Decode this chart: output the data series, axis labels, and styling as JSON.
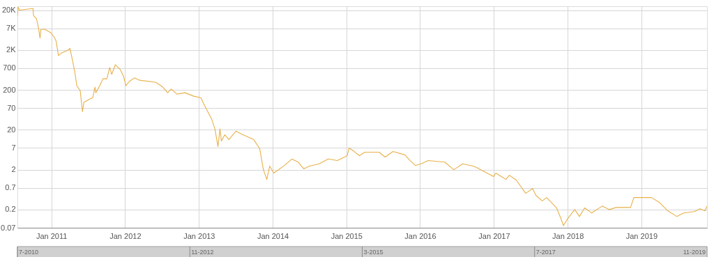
{
  "chart_data": {
    "type": "line",
    "color": "#e8b04a",
    "grid": true,
    "log": "y",
    "xlim": [
      "2010-07-17",
      "2019-11-22"
    ],
    "xticks": [
      {
        "value": "2011-01-01",
        "label": "Jan 2011"
      },
      {
        "value": "2012-01-01",
        "label": "Jan 2012"
      },
      {
        "value": "2013-01-01",
        "label": "Jan 2013"
      },
      {
        "value": "2014-01-01",
        "label": "Jan 2014"
      },
      {
        "value": "2015-01-01",
        "label": "Jan 2015"
      },
      {
        "value": "2016-01-01",
        "label": "Jan 2016"
      },
      {
        "value": "2017-01-01",
        "label": "Jan 2017"
      },
      {
        "value": "2018-01-01",
        "label": "Jan 2018"
      },
      {
        "value": "2019-01-01",
        "label": "Jan 2019"
      }
    ],
    "ylim": [
      0.07,
      25000
    ],
    "yticks": [
      0.07,
      0.2,
      0.7,
      2,
      7,
      20,
      70,
      200,
      700,
      {
        "value": 2000,
        "label": "2K"
      },
      {
        "value": 7000,
        "label": "7K"
      },
      {
        "value": 20000,
        "label": "20K"
      }
    ],
    "annotations": [
      "7-2010",
      "11-2012",
      "3-2015",
      "7-2017",
      "11-2019"
    ],
    "x": [
      "2010-07-17",
      "2010-07-20",
      "2010-07-27",
      "2010-10-02",
      "2010-10-05",
      "2010-10-19",
      "2010-10-29",
      "2010-11-06",
      "2010-11-10",
      "2010-11-27",
      "2010-12-28",
      "2011-01-14",
      "2011-01-25",
      "2011-02-05",
      "2011-02-18",
      "2011-03-26",
      "2011-04-03",
      "2011-04-13",
      "2011-04-27",
      "2011-05-07",
      "2011-05-24",
      "2011-06-04",
      "2011-06-11",
      "2011-07-05",
      "2011-07-25",
      "2011-08-05",
      "2011-08-09",
      "2011-08-29",
      "2011-09-13",
      "2011-10-03",
      "2011-10-17",
      "2011-10-27",
      "2011-11-14",
      "2011-12-08",
      "2011-12-25",
      "2012-01-05",
      "2012-01-22",
      "2012-02-16",
      "2012-03-13",
      "2012-06-02",
      "2012-07-06",
      "2012-07-30",
      "2012-08-17",
      "2012-09-14",
      "2012-10-24",
      "2012-12-06",
      "2013-01-10",
      "2013-01-30",
      "2013-03-04",
      "2013-03-21",
      "2013-04-05",
      "2013-04-15",
      "2013-04-22",
      "2013-05-09",
      "2013-05-29",
      "2013-07-03",
      "2013-08-07",
      "2013-09-29",
      "2013-10-29",
      "2013-11-16",
      "2013-12-03",
      "2013-12-17",
      "2014-01-07",
      "2014-02-28",
      "2014-04-06",
      "2014-05-07",
      "2014-06-04",
      "2014-07-01",
      "2014-08-19",
      "2014-10-03",
      "2014-11-17",
      "2015-01-05",
      "2015-01-15",
      "2015-02-09",
      "2015-03-06",
      "2015-04-03",
      "2015-06-12",
      "2015-07-12",
      "2015-08-20",
      "2015-10-18",
      "2015-11-12",
      "2015-12-09",
      "2016-01-06",
      "2016-02-10",
      "2016-05-02",
      "2016-06-16",
      "2016-07-30",
      "2016-09-21",
      "2016-10-08",
      "2016-12-30",
      "2017-01-10",
      "2017-03-01",
      "2017-03-18",
      "2017-04-22",
      "2017-06-07",
      "2017-07-11",
      "2017-07-28",
      "2017-08-28",
      "2017-09-19",
      "2017-11-07",
      "2017-11-27",
      "2017-12-11",
      "2018-01-01",
      "2018-02-05",
      "2018-02-28",
      "2018-03-26",
      "2018-04-30",
      "2018-06-21",
      "2018-07-26",
      "2018-08-30",
      "2018-11-08",
      "2018-11-25",
      "2018-12-29",
      "2019-02-20",
      "2019-04-01",
      "2019-05-12",
      "2019-06-26",
      "2019-07-30",
      "2019-09-21",
      "2019-10-18",
      "2019-11-12",
      "2019-11-22"
    ],
    "values": [
      14000,
      24000,
      20000,
      22000,
      14500,
      12300,
      7300,
      4000,
      6500,
      6700,
      5500,
      4300,
      3300,
      1450,
      1650,
      2000,
      2200,
      1280,
      570,
      255,
      190,
      57,
      97,
      114,
      128,
      235,
      170,
      255,
      380,
      380,
      730,
      490,
      860,
      650,
      430,
      255,
      325,
      400,
      350,
      310,
      235,
      170,
      210,
      157,
      170,
      139,
      128,
      79,
      38,
      21,
      7.6,
      21,
      10.5,
      15,
      11.4,
      18.5,
      15,
      11.4,
      6.7,
      2.0,
      1.14,
      2.45,
      1.64,
      2.55,
      3.7,
      3.1,
      2.1,
      2.45,
      2.8,
      3.7,
      3.4,
      4.5,
      7.0,
      5.7,
      4.5,
      5.5,
      5.5,
      4.15,
      5.7,
      4.7,
      3.4,
      2.55,
      2.8,
      3.4,
      3.1,
      2.0,
      2.8,
      2.45,
      2.25,
      1.34,
      1.64,
      1.14,
      1.45,
      1.09,
      0.51,
      0.67,
      0.45,
      0.33,
      0.4,
      0.22,
      0.124,
      0.079,
      0.119,
      0.2,
      0.134,
      0.22,
      0.164,
      0.245,
      0.2,
      0.226,
      0.226,
      0.4,
      0.4,
      0.4,
      0.3,
      0.185,
      0.134,
      0.164,
      0.178,
      0.21,
      0.185,
      0.245
    ]
  }
}
